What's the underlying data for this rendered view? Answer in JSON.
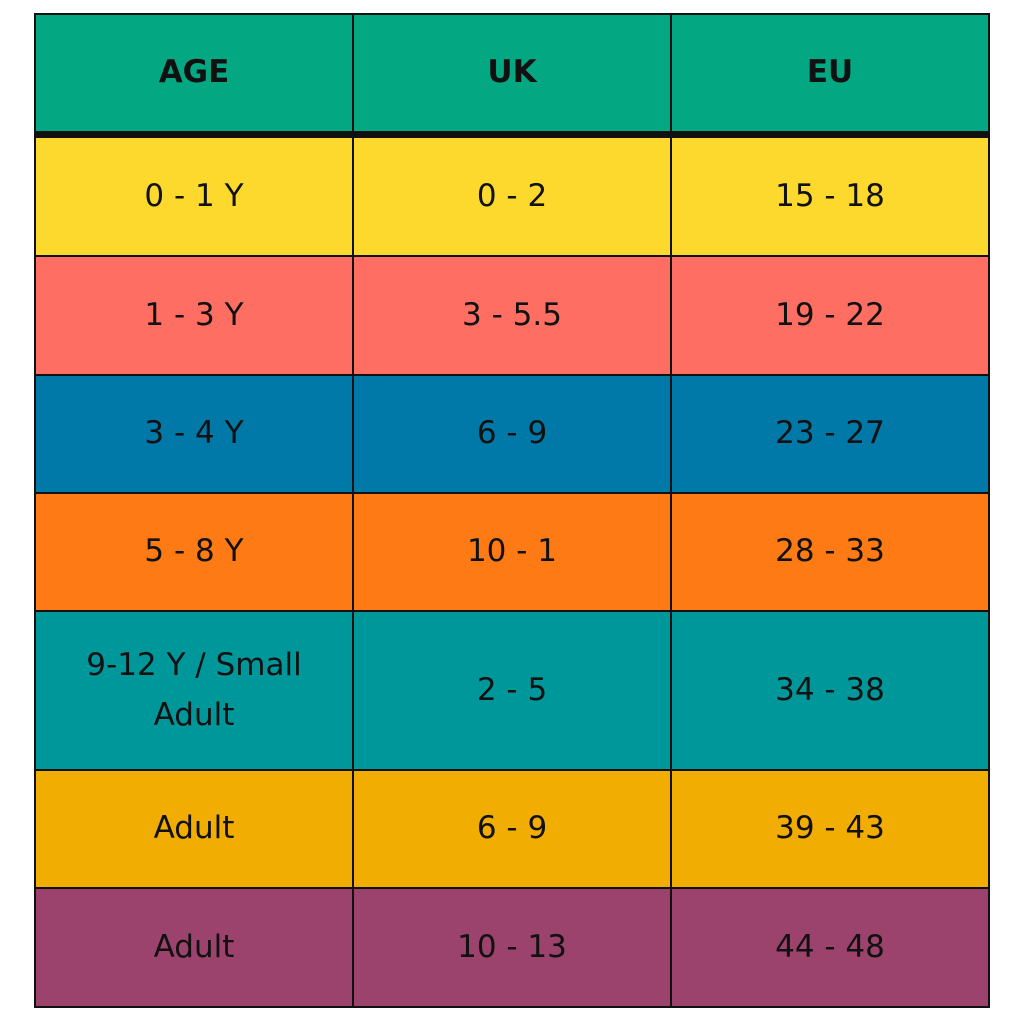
{
  "table": {
    "header": [
      "AGE",
      "UK",
      "EU"
    ],
    "rows": [
      [
        "0 - 1 Y",
        "0 - 2",
        "15 - 18"
      ],
      [
        "1 - 3 Y",
        "3 - 5.5",
        "19 - 22"
      ],
      [
        "3 - 4 Y",
        "6 - 9",
        "23 - 27"
      ],
      [
        "5 - 8 Y",
        "10 - 1",
        "28 - 33"
      ],
      [
        "9-12 Y / Small Adult",
        "2 - 5",
        "34 - 38"
      ],
      [
        "Adult",
        "6 - 9",
        "39 - 43"
      ],
      [
        "Adult",
        "10 - 13",
        "44 - 48"
      ]
    ]
  }
}
